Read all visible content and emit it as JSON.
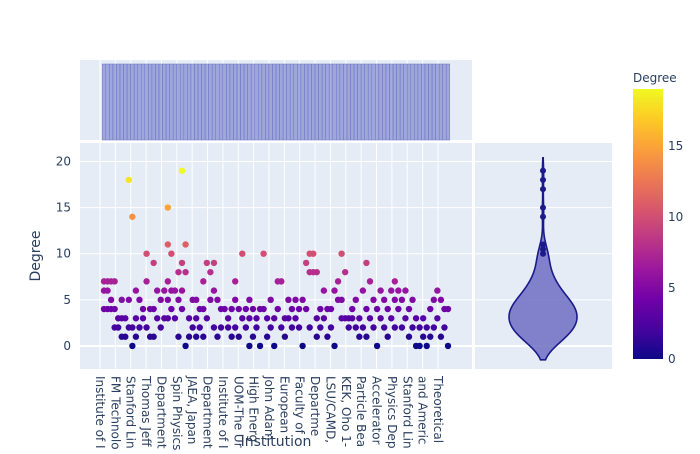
{
  "chart_data": {
    "type": "scatter",
    "title": "",
    "xlabel": "Institution",
    "ylabel": "Degree",
    "ylim": [
      -2.5,
      22
    ],
    "yticks": [
      0,
      5,
      10,
      15,
      20
    ],
    "grid": true,
    "x_tick_labels": [
      "Institute of I",
      "FM Technolo",
      "Stanford Lin",
      "Thomas Jeff",
      "Department",
      "Spin Physics",
      "JAEA, Japan",
      "Department",
      "Institute of I",
      "UOM-The Ur",
      "High Energ",
      "John Adam",
      "European",
      "Faculty of",
      "Departme",
      "LSU/CAMD,",
      "KEK, Oho 1-",
      "Particle Bea",
      "Accelerator",
      "Physics Dep",
      "Stanford Lin",
      "and Americ",
      "Theoretical"
    ],
    "colorbar": {
      "title": "Degree",
      "min": 0,
      "max": 19,
      "ticks": [
        0,
        5,
        10,
        15
      ],
      "colorscale": [
        "#0d0887",
        "#46039f",
        "#7201a8",
        "#9c179e",
        "#bd3786",
        "#d8576b",
        "#ed7953",
        "#fb9f3a",
        "#fdca26",
        "#f0f921"
      ]
    },
    "marginal_top": {
      "type": "histogram",
      "color": "#6e78c8"
    },
    "marginal_right": {
      "type": "violin",
      "fill": "#6e6fc2",
      "line": "#1a1a8c",
      "outliers": [
        10,
        10.5,
        11,
        14,
        15,
        17,
        18,
        19
      ]
    },
    "series": [
      {
        "points": [
          {
            "x": 0,
            "y": 7
          },
          {
            "x": 0,
            "y": 6
          },
          {
            "x": 0,
            "y": 4
          },
          {
            "x": 1,
            "y": 7
          },
          {
            "x": 1,
            "y": 6
          },
          {
            "x": 1,
            "y": 4
          },
          {
            "x": 2,
            "y": 7
          },
          {
            "x": 2,
            "y": 5
          },
          {
            "x": 2,
            "y": 4
          },
          {
            "x": 3,
            "y": 7
          },
          {
            "x": 3,
            "y": 4
          },
          {
            "x": 3,
            "y": 2
          },
          {
            "x": 4,
            "y": 3
          },
          {
            "x": 4,
            "y": 2
          },
          {
            "x": 5,
            "y": 5
          },
          {
            "x": 5,
            "y": 3
          },
          {
            "x": 5,
            "y": 1
          },
          {
            "x": 6,
            "y": 3
          },
          {
            "x": 6,
            "y": 1
          },
          {
            "x": 7,
            "y": 18
          },
          {
            "x": 7,
            "y": 5
          },
          {
            "x": 7,
            "y": 2
          },
          {
            "x": 8,
            "y": 14
          },
          {
            "x": 8,
            "y": 2
          },
          {
            "x": 8,
            "y": 0
          },
          {
            "x": 9,
            "y": 6
          },
          {
            "x": 9,
            "y": 3
          },
          {
            "x": 9,
            "y": 1
          },
          {
            "x": 10,
            "y": 5
          },
          {
            "x": 10,
            "y": 2
          },
          {
            "x": 11,
            "y": 4
          },
          {
            "x": 11,
            "y": 3
          },
          {
            "x": 12,
            "y": 10
          },
          {
            "x": 12,
            "y": 7
          },
          {
            "x": 12,
            "y": 2
          },
          {
            "x": 13,
            "y": 4
          },
          {
            "x": 13,
            "y": 1
          },
          {
            "x": 14,
            "y": 9
          },
          {
            "x": 14,
            "y": 4
          },
          {
            "x": 14,
            "y": 1
          },
          {
            "x": 15,
            "y": 6
          },
          {
            "x": 15,
            "y": 3
          },
          {
            "x": 16,
            "y": 5
          },
          {
            "x": 16,
            "y": 2
          },
          {
            "x": 17,
            "y": 6
          },
          {
            "x": 17,
            "y": 3
          },
          {
            "x": 18,
            "y": 15
          },
          {
            "x": 18,
            "y": 11
          },
          {
            "x": 18,
            "y": 7
          },
          {
            "x": 18,
            "y": 5
          },
          {
            "x": 18,
            "y": 3
          },
          {
            "x": 19,
            "y": 10
          },
          {
            "x": 19,
            "y": 6
          },
          {
            "x": 19,
            "y": 4
          },
          {
            "x": 20,
            "y": 6
          },
          {
            "x": 20,
            "y": 3
          },
          {
            "x": 21,
            "y": 8
          },
          {
            "x": 21,
            "y": 5
          },
          {
            "x": 21,
            "y": 1
          },
          {
            "x": 22,
            "y": 19
          },
          {
            "x": 22,
            "y": 9
          },
          {
            "x": 22,
            "y": 6
          },
          {
            "x": 22,
            "y": 4
          },
          {
            "x": 23,
            "y": 11
          },
          {
            "x": 23,
            "y": 8
          },
          {
            "x": 23,
            "y": 0
          },
          {
            "x": 24,
            "y": 3
          },
          {
            "x": 24,
            "y": 1
          },
          {
            "x": 25,
            "y": 5
          },
          {
            "x": 25,
            "y": 2
          },
          {
            "x": 26,
            "y": 5
          },
          {
            "x": 26,
            "y": 3
          },
          {
            "x": 26,
            "y": 1
          },
          {
            "x": 27,
            "y": 4
          },
          {
            "x": 27,
            "y": 2
          },
          {
            "x": 28,
            "y": 7
          },
          {
            "x": 28,
            "y": 4
          },
          {
            "x": 28,
            "y": 1
          },
          {
            "x": 29,
            "y": 9
          },
          {
            "x": 29,
            "y": 3
          },
          {
            "x": 30,
            "y": 8
          },
          {
            "x": 30,
            "y": 5
          },
          {
            "x": 31,
            "y": 9
          },
          {
            "x": 31,
            "y": 6
          },
          {
            "x": 31,
            "y": 2
          },
          {
            "x": 32,
            "y": 5
          },
          {
            "x": 32,
            "y": 1
          },
          {
            "x": 33,
            "y": 4
          },
          {
            "x": 33,
            "y": 2
          },
          {
            "x": 34,
            "y": 4
          },
          {
            "x": 35,
            "y": 3
          },
          {
            "x": 35,
            "y": 2
          },
          {
            "x": 36,
            "y": 4
          },
          {
            "x": 36,
            "y": 1
          },
          {
            "x": 37,
            "y": 7
          },
          {
            "x": 37,
            "y": 5
          },
          {
            "x": 37,
            "y": 2
          },
          {
            "x": 38,
            "y": 4
          },
          {
            "x": 38,
            "y": 1
          },
          {
            "x": 39,
            "y": 10
          },
          {
            "x": 39,
            "y": 3
          },
          {
            "x": 40,
            "y": 4
          },
          {
            "x": 40,
            "y": 2
          },
          {
            "x": 41,
            "y": 5
          },
          {
            "x": 41,
            "y": 3
          },
          {
            "x": 41,
            "y": 0
          },
          {
            "x": 42,
            "y": 4
          },
          {
            "x": 42,
            "y": 1
          },
          {
            "x": 43,
            "y": 3
          },
          {
            "x": 43,
            "y": 2
          },
          {
            "x": 44,
            "y": 4
          },
          {
            "x": 44,
            "y": 0
          },
          {
            "x": 45,
            "y": 10
          },
          {
            "x": 45,
            "y": 4
          },
          {
            "x": 46,
            "y": 3
          },
          {
            "x": 46,
            "y": 1
          },
          {
            "x": 47,
            "y": 5
          },
          {
            "x": 47,
            "y": 2
          },
          {
            "x": 48,
            "y": 3
          },
          {
            "x": 48,
            "y": 0
          },
          {
            "x": 49,
            "y": 7
          },
          {
            "x": 49,
            "y": 4
          },
          {
            "x": 50,
            "y": 7
          },
          {
            "x": 50,
            "y": 2
          },
          {
            "x": 51,
            "y": 3
          },
          {
            "x": 51,
            "y": 1
          },
          {
            "x": 52,
            "y": 5
          },
          {
            "x": 52,
            "y": 3
          },
          {
            "x": 53,
            "y": 4
          },
          {
            "x": 53,
            "y": 2
          },
          {
            "x": 54,
            "y": 5
          },
          {
            "x": 54,
            "y": 3
          },
          {
            "x": 55,
            "y": 4
          },
          {
            "x": 55,
            "y": 2
          },
          {
            "x": 56,
            "y": 5
          },
          {
            "x": 56,
            "y": 0
          },
          {
            "x": 57,
            "y": 9
          },
          {
            "x": 57,
            "y": 4
          },
          {
            "x": 58,
            "y": 10
          },
          {
            "x": 58,
            "y": 8
          },
          {
            "x": 58,
            "y": 2
          },
          {
            "x": 59,
            "y": 10
          },
          {
            "x": 59,
            "y": 8
          },
          {
            "x": 60,
            "y": 8
          },
          {
            "x": 60,
            "y": 3
          },
          {
            "x": 60,
            "y": 1
          },
          {
            "x": 61,
            "y": 4
          },
          {
            "x": 61,
            "y": 2
          },
          {
            "x": 62,
            "y": 6
          },
          {
            "x": 62,
            "y": 3
          },
          {
            "x": 63,
            "y": 4
          },
          {
            "x": 63,
            "y": 1
          },
          {
            "x": 64,
            "y": 4
          },
          {
            "x": 64,
            "y": 2
          },
          {
            "x": 65,
            "y": 6
          },
          {
            "x": 65,
            "y": 0
          },
          {
            "x": 66,
            "y": 7
          },
          {
            "x": 66,
            "y": 5
          },
          {
            "x": 67,
            "y": 10
          },
          {
            "x": 67,
            "y": 5
          },
          {
            "x": 67,
            "y": 3
          },
          {
            "x": 68,
            "y": 8
          },
          {
            "x": 68,
            "y": 3
          },
          {
            "x": 69,
            "y": 3
          },
          {
            "x": 69,
            "y": 2
          },
          {
            "x": 70,
            "y": 4
          },
          {
            "x": 70,
            "y": 3
          },
          {
            "x": 71,
            "y": 5
          },
          {
            "x": 71,
            "y": 2
          },
          {
            "x": 72,
            "y": 3
          },
          {
            "x": 72,
            "y": 1
          },
          {
            "x": 73,
            "y": 6
          },
          {
            "x": 73,
            "y": 2
          },
          {
            "x": 74,
            "y": 9
          },
          {
            "x": 74,
            "y": 4
          },
          {
            "x": 74,
            "y": 1
          },
          {
            "x": 75,
            "y": 7
          },
          {
            "x": 75,
            "y": 3
          },
          {
            "x": 76,
            "y": 5
          },
          {
            "x": 76,
            "y": 2
          },
          {
            "x": 77,
            "y": 4
          },
          {
            "x": 77,
            "y": 0
          },
          {
            "x": 78,
            "y": 6
          },
          {
            "x": 78,
            "y": 3
          },
          {
            "x": 79,
            "y": 5
          },
          {
            "x": 79,
            "y": 2
          },
          {
            "x": 80,
            "y": 4
          },
          {
            "x": 80,
            "y": 1
          },
          {
            "x": 81,
            "y": 6
          },
          {
            "x": 81,
            "y": 3
          },
          {
            "x": 82,
            "y": 7
          },
          {
            "x": 82,
            "y": 5
          },
          {
            "x": 82,
            "y": 2
          },
          {
            "x": 83,
            "y": 6
          },
          {
            "x": 83,
            "y": 4
          },
          {
            "x": 84,
            "y": 5
          },
          {
            "x": 84,
            "y": 2
          },
          {
            "x": 85,
            "y": 6
          },
          {
            "x": 85,
            "y": 3
          },
          {
            "x": 86,
            "y": 4
          },
          {
            "x": 86,
            "y": 1
          },
          {
            "x": 87,
            "y": 5
          },
          {
            "x": 87,
            "y": 2
          },
          {
            "x": 88,
            "y": 3
          },
          {
            "x": 88,
            "y": 0
          },
          {
            "x": 89,
            "y": 2
          },
          {
            "x": 89,
            "y": 0
          },
          {
            "x": 90,
            "y": 3
          },
          {
            "x": 90,
            "y": 1
          },
          {
            "x": 91,
            "y": 2
          },
          {
            "x": 91,
            "y": 0
          },
          {
            "x": 92,
            "y": 4
          },
          {
            "x": 92,
            "y": 1
          },
          {
            "x": 93,
            "y": 5
          },
          {
            "x": 93,
            "y": 2
          },
          {
            "x": 94,
            "y": 6
          },
          {
            "x": 94,
            "y": 3
          },
          {
            "x": 95,
            "y": 5
          },
          {
            "x": 95,
            "y": 1
          },
          {
            "x": 96,
            "y": 4
          },
          {
            "x": 96,
            "y": 2
          },
          {
            "x": 97,
            "y": 4
          },
          {
            "x": 97,
            "y": 0
          }
        ]
      }
    ]
  }
}
